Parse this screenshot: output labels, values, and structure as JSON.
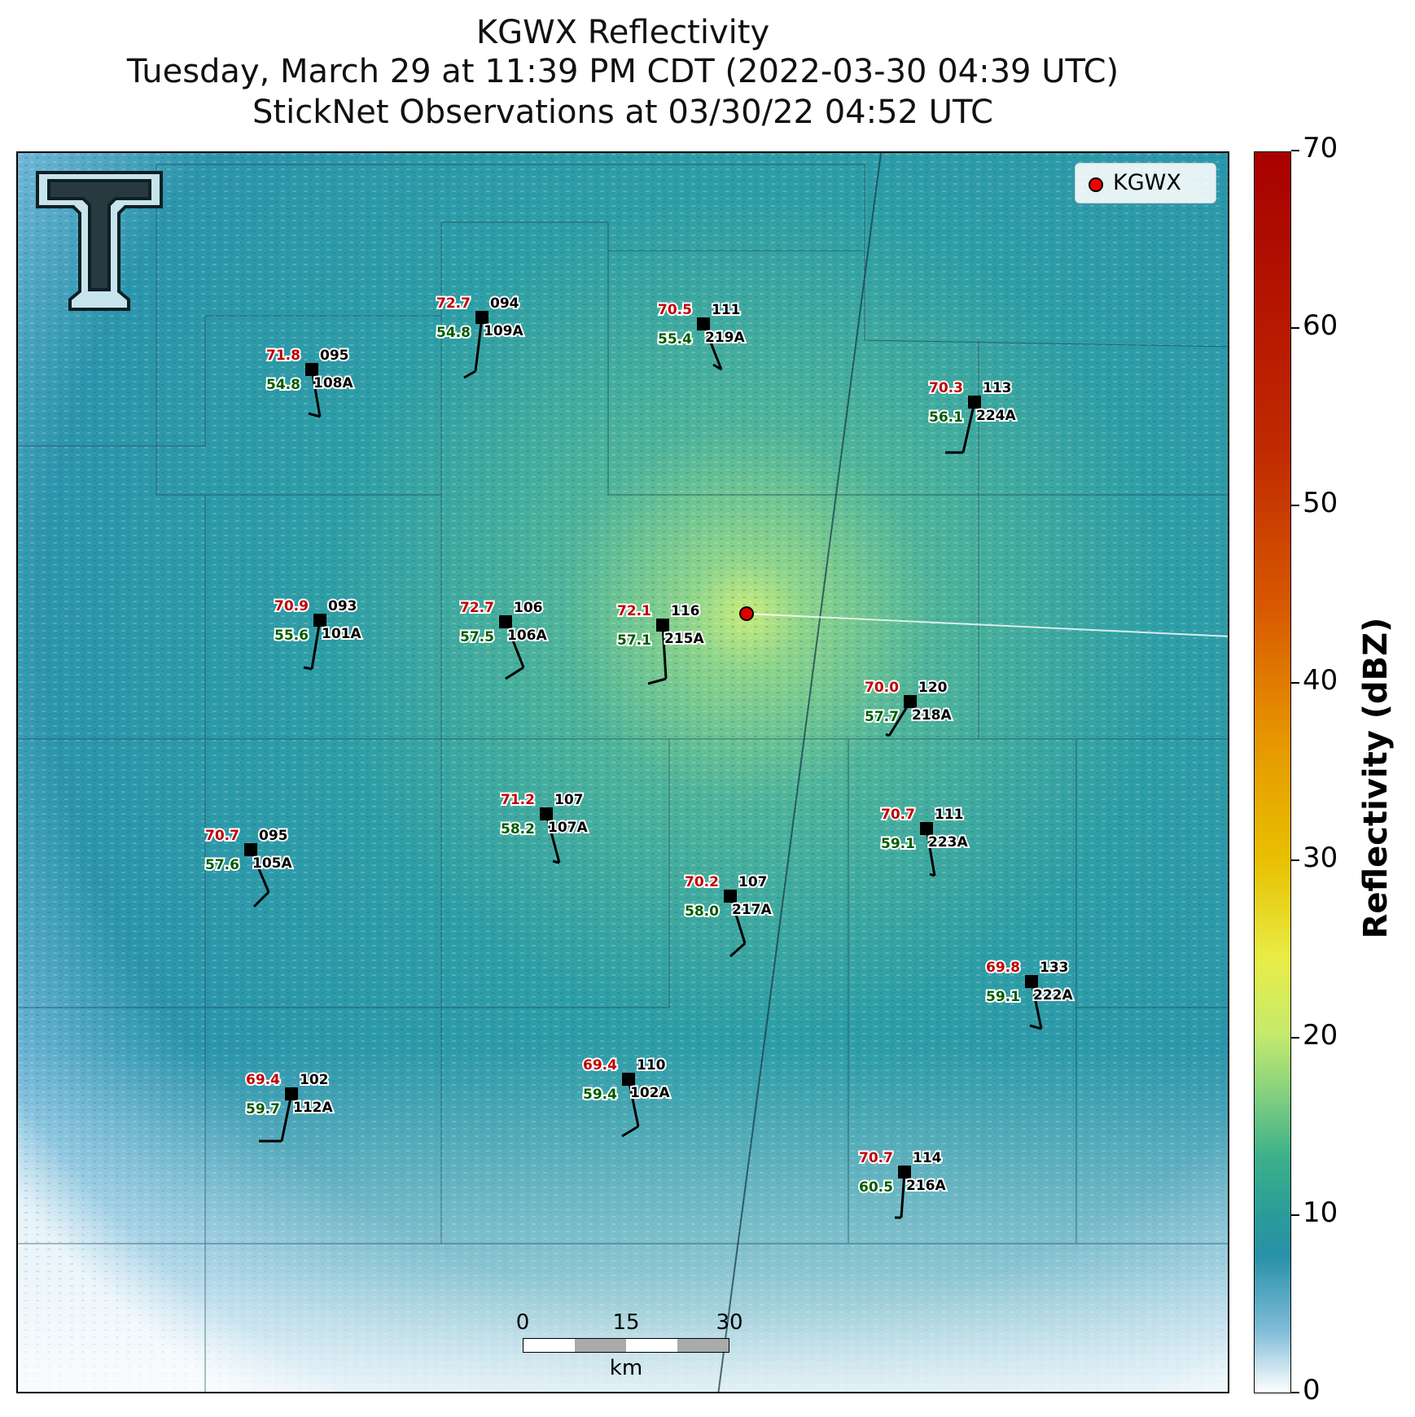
{
  "titles": {
    "line1": "KGWX Reflectivity",
    "line2": "Tuesday, March 29 at 11:39 PM CDT (2022-03-30 04:39 UTC)",
    "line3": "StickNet Observations at 03/30/22 04:52 UTC"
  },
  "legend": {
    "label": "KGWX",
    "marker_color": "#e00000"
  },
  "radar_site": {
    "name": "KGWX"
  },
  "colorbar": {
    "label": "Reflectivity (dBZ)",
    "ticks": [
      "0",
      "10",
      "20",
      "30",
      "40",
      "50",
      "60",
      "70"
    ],
    "range": [
      0,
      70
    ]
  },
  "scalebar": {
    "labels": [
      "0",
      "15",
      "30"
    ],
    "unit": "km"
  },
  "colors": {
    "temp": "#c00000",
    "dew": "#005c00",
    "station": "#000000",
    "radar_bg": "#2a9aa8"
  },
  "stations": [
    {
      "id": "109A",
      "temp": "72.7",
      "dew": "54.8",
      "pres": "094"
    },
    {
      "id": "219A",
      "temp": "70.5",
      "dew": "55.4",
      "pres": "111"
    },
    {
      "id": "108A",
      "temp": "71.8",
      "dew": "54.8",
      "pres": "095"
    },
    {
      "id": "224A",
      "temp": "70.3",
      "dew": "56.1",
      "pres": "113"
    },
    {
      "id": "101A",
      "temp": "70.9",
      "dew": "55.6",
      "pres": "093"
    },
    {
      "id": "106A",
      "temp": "72.7",
      "dew": "57.5",
      "pres": "106"
    },
    {
      "id": "215A",
      "temp": "72.1",
      "dew": "57.1",
      "pres": "116"
    },
    {
      "id": "218A",
      "temp": "70.0",
      "dew": "57.7",
      "pres": "120"
    },
    {
      "id": "107A",
      "temp": "71.2",
      "dew": "58.2",
      "pres": "107"
    },
    {
      "id": "223A",
      "temp": "70.7",
      "dew": "59.1",
      "pres": "111"
    },
    {
      "id": "105A",
      "temp": "70.7",
      "dew": "57.6",
      "pres": "095"
    },
    {
      "id": "217A",
      "temp": "70.2",
      "dew": "58.0",
      "pres": "107"
    },
    {
      "id": "222A",
      "temp": "69.8",
      "dew": "59.1",
      "pres": "133"
    },
    {
      "id": "102A",
      "temp": "69.4",
      "dew": "59.4",
      "pres": "110"
    },
    {
      "id": "112A",
      "temp": "69.4",
      "dew": "59.7",
      "pres": "102"
    },
    {
      "id": "216A",
      "temp": "70.7",
      "dew": "60.5",
      "pres": "114"
    }
  ]
}
